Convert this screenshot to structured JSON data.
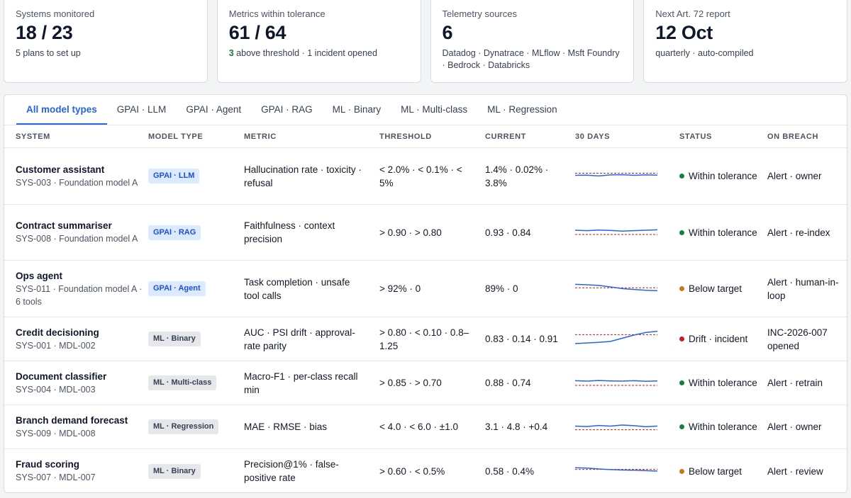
{
  "stats": [
    {
      "label": "Systems monitored",
      "value": "18 / 23",
      "sub": "5 plans to set up"
    },
    {
      "label": "Metrics within tolerance",
      "value": "61 / 64",
      "sub_highlight": "3",
      "sub": " above threshold · 1 incident opened"
    },
    {
      "label": "Telemetry sources",
      "value": "6",
      "sub": "Datadog · Dynatrace · MLflow · Msft Foundry · Bedrock · Databricks"
    },
    {
      "label": "Next Art. 72 report",
      "value": "12 Oct",
      "sub": "quarterly · auto-compiled"
    }
  ],
  "tabs": [
    "All model types",
    "GPAI · LLM",
    "GPAI · Agent",
    "GPAI · RAG",
    "ML · Binary",
    "ML · Multi-class",
    "ML · Regression"
  ],
  "active_tab": "All model types",
  "columns": {
    "system": "SYSTEM",
    "model_type": "MODEL TYPE",
    "metric": "METRIC",
    "threshold": "THRESHOLD",
    "current": "CURRENT",
    "days": "30 DAYS",
    "status": "STATUS",
    "breach": "ON BREACH"
  },
  "colors": {
    "accent": "#2563eb",
    "ok": "#15803d",
    "warn": "#c27c12",
    "bad": "#c81e1e",
    "spark_line": "#2563eb",
    "threshold_line": "#c81e1e"
  },
  "rows": [
    {
      "name": "Customer assistant",
      "sub": "SYS-003 · Foundation model A",
      "type": "GPAI · LLM",
      "kind": "gpai",
      "metric": "Hallucination rate · toxicity · refusal",
      "threshold": "< 2.0% · < 0.1% · < 5%",
      "current": "1.4% · 0.02% · 3.8%",
      "status": "Within tolerance",
      "status_level": "ok",
      "breach": "Alert · owner",
      "trend": [
        0.55,
        0.56,
        0.52,
        0.57,
        0.58,
        0.55,
        0.57,
        0.56
      ],
      "limit": 0.65
    },
    {
      "name": "Contract summariser",
      "sub": "SYS-008 · Foundation model A",
      "type": "GPAI · RAG",
      "kind": "gpai",
      "metric": "Faithfulness · context precision",
      "threshold": "> 0.90 · > 0.80",
      "current": "0.93 · 0.84",
      "status": "Within tolerance",
      "status_level": "ok",
      "breach": "Alert · re-index",
      "trend": [
        0.6,
        0.58,
        0.61,
        0.59,
        0.56,
        0.58,
        0.6,
        0.62
      ],
      "limit": 0.4
    },
    {
      "name": "Ops agent",
      "sub": "SYS-011 · Foundation model A · 6 tools",
      "type": "GPAI · Agent",
      "kind": "gpai",
      "metric": "Task completion · unsafe tool calls",
      "threshold": "> 92% · 0",
      "current": "89% · 0",
      "status": "Below target",
      "status_level": "warn",
      "breach": "Alert · human-in-loop",
      "trend": [
        0.72,
        0.7,
        0.67,
        0.6,
        0.52,
        0.48,
        0.44,
        0.42
      ],
      "limit": 0.56
    },
    {
      "name": "Credit decisioning",
      "sub": "SYS-001 · MDL-002",
      "type": "ML · Binary",
      "kind": "ml",
      "metric": "AUC · PSI drift · approval-rate parity",
      "threshold": "> 0.80 · < 0.10 · 0.8–1.25",
      "current": "0.83 · 0.14 · 0.91",
      "status": "Drift · incident",
      "status_level": "bad",
      "breach": "INC-2026-007 opened",
      "trend": [
        0.3,
        0.33,
        0.36,
        0.4,
        0.55,
        0.7,
        0.82,
        0.88
      ],
      "limit": 0.72
    },
    {
      "name": "Document classifier",
      "sub": "SYS-004 · MDL-003",
      "type": "ML · Multi-class",
      "kind": "ml",
      "metric": "Macro-F1 · per-class recall min",
      "threshold": "> 0.85 · > 0.70",
      "current": "0.88 · 0.74",
      "status": "Within tolerance",
      "status_level": "ok",
      "breach": "Alert · retrain",
      "trend": [
        0.62,
        0.6,
        0.63,
        0.61,
        0.6,
        0.62,
        0.59,
        0.61
      ],
      "limit": 0.4
    },
    {
      "name": "Branch demand forecast",
      "sub": "SYS-009 · MDL-008",
      "type": "ML · Regression",
      "kind": "ml",
      "metric": "MAE · RMSE · bias",
      "threshold": "< 4.0 · < 6.0 · ±1.0",
      "current": "3.1 · 4.8 · +0.4",
      "status": "Within tolerance",
      "status_level": "ok",
      "breach": "Alert · owner",
      "trend": [
        0.55,
        0.53,
        0.58,
        0.55,
        0.6,
        0.57,
        0.52,
        0.55
      ],
      "limit": 0.38
    },
    {
      "name": "Fraud scoring",
      "sub": "SYS-007 · MDL-007",
      "type": "ML · Binary",
      "kind": "ml",
      "metric": "Precision@1% · false-positive rate",
      "threshold": "> 0.60 · < 0.5%",
      "current": "0.58 · 0.4%",
      "status": "Below target",
      "status_level": "warn",
      "breach": "Alert · review",
      "trend": [
        0.66,
        0.64,
        0.6,
        0.57,
        0.55,
        0.54,
        0.52,
        0.5
      ],
      "limit": 0.58
    }
  ]
}
